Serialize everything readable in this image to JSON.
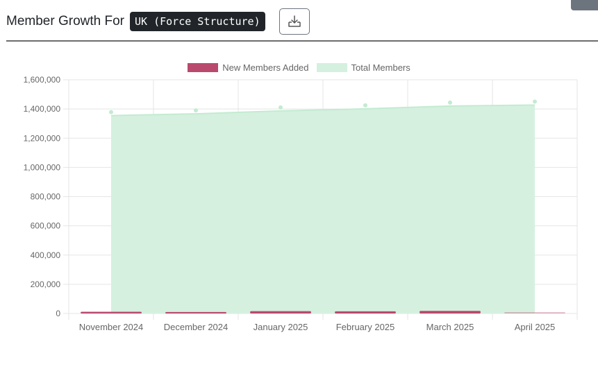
{
  "header": {
    "title": "Member Growth For",
    "scope": "UK (Force Structure)",
    "download_icon": "download-icon"
  },
  "colors": {
    "new_members": "#b94a6e",
    "total_members_fill": "#d5f0df",
    "total_members_line": "#c3ebd1",
    "grid": "#e5e5e5",
    "tick_text": "#666666"
  },
  "chart_data": {
    "type": "bar",
    "categories": [
      "November 2024",
      "December 2024",
      "January 2025",
      "February 2025",
      "March 2025",
      "April 2025"
    ],
    "series": [
      {
        "name": "New Members Added",
        "type": "bar",
        "values": [
          12000,
          10000,
          16000,
          15000,
          18000,
          3000
        ]
      },
      {
        "name": "Total Members",
        "type": "area",
        "values": [
          1355000,
          1367000,
          1387000,
          1401000,
          1420000,
          1427000
        ]
      }
    ],
    "ylim": [
      0,
      1600000
    ],
    "y_ticks": [
      "0",
      "200,000",
      "400,000",
      "600,000",
      "800,000",
      "1,000,000",
      "1,200,000",
      "1,400,000",
      "1,600,000"
    ],
    "grid": true,
    "legend_position": "top"
  }
}
